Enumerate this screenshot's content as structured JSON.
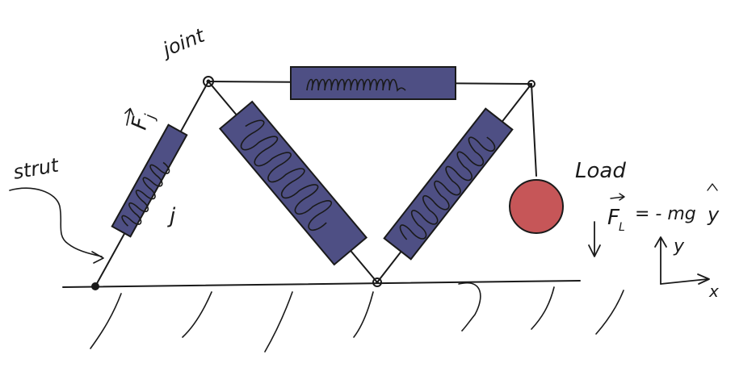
{
  "labels": {
    "joint": "joint",
    "strut": "strut",
    "force_j": "F",
    "force_j_sub": "j",
    "member_j": "j",
    "load": "Load",
    "load_force": "F",
    "load_force_sub": "L",
    "load_eq": "= - mg",
    "load_eq_unit": "y",
    "axis_y": "y",
    "axis_x": "x"
  },
  "colors": {
    "strut_fill": "#4e4f84",
    "load_fill": "#c65658",
    "ink": "#1a1a1a"
  }
}
